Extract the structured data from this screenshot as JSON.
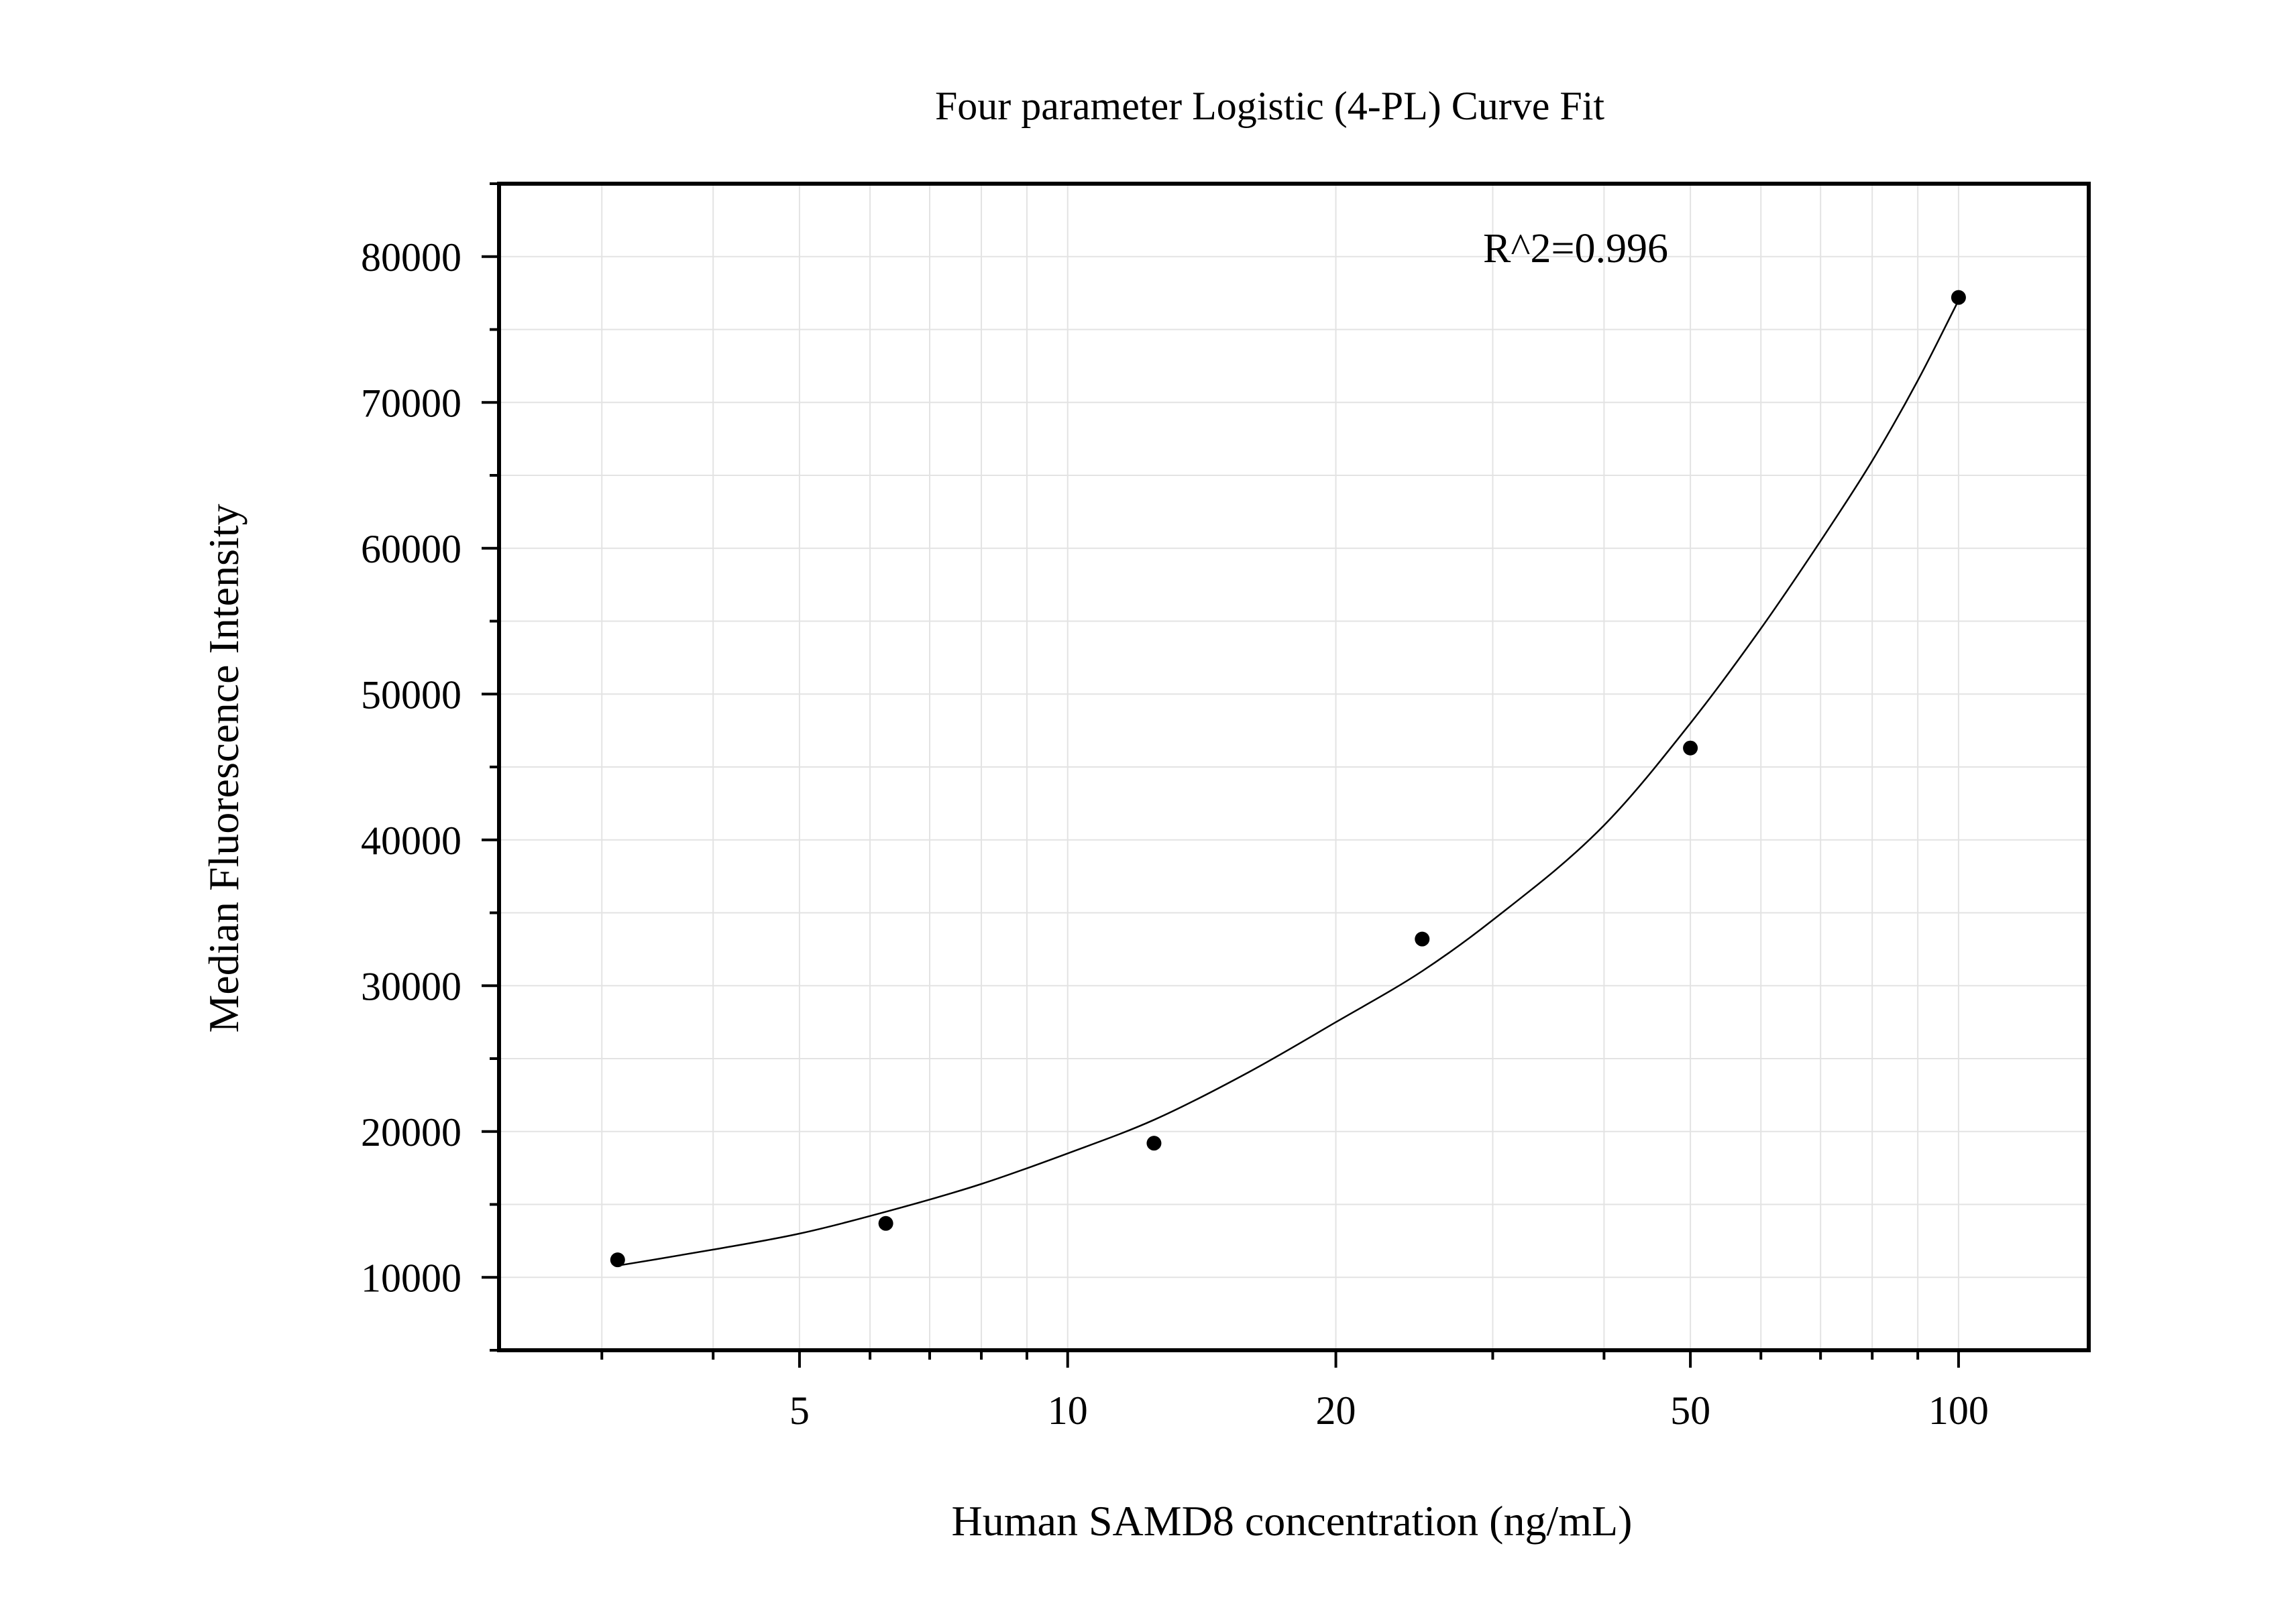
{
  "chart_data": {
    "type": "scatter",
    "title": "Four parameter Logistic (4-PL) Curve Fit",
    "xlabel": "Human SAMD8 concentration (ng/mL)",
    "ylabel": "Median Fluorescence Intensity",
    "x_scale": "log",
    "xlim": [
      2.3,
      140
    ],
    "ylim": [
      5000,
      85000
    ],
    "x_ticks": [
      5,
      10,
      20,
      50,
      100
    ],
    "x_tick_labels": [
      "5",
      "10",
      "20",
      "50",
      "100"
    ],
    "y_ticks": [
      10000,
      20000,
      30000,
      40000,
      50000,
      60000,
      70000,
      80000
    ],
    "y_tick_labels": [
      "10000",
      "20000",
      "30000",
      "40000",
      "50000",
      "60000",
      "70000",
      "80000"
    ],
    "grid": true,
    "annotation": "R^2=0.996",
    "series": [
      {
        "type": "scatter",
        "x": [
          3.125,
          6.25,
          12.5,
          25,
          50,
          100
        ],
        "y": [
          11200,
          13700,
          19200,
          33200,
          46300,
          77200
        ]
      },
      {
        "type": "line",
        "x": [
          3.125,
          4,
          5,
          6.25,
          8,
          10,
          12.5,
          16,
          20,
          25,
          30,
          40,
          50,
          60,
          70,
          80,
          90,
          100
        ],
        "y": [
          10800,
          11900,
          13000,
          14500,
          16400,
          18500,
          20800,
          24100,
          27500,
          31000,
          34500,
          41000,
          48000,
          54500,
          60500,
          66000,
          71500,
          77000
        ]
      }
    ],
    "colors": {
      "points": "#000000",
      "fit": "#000000",
      "grid": "#e3e3e3"
    }
  }
}
